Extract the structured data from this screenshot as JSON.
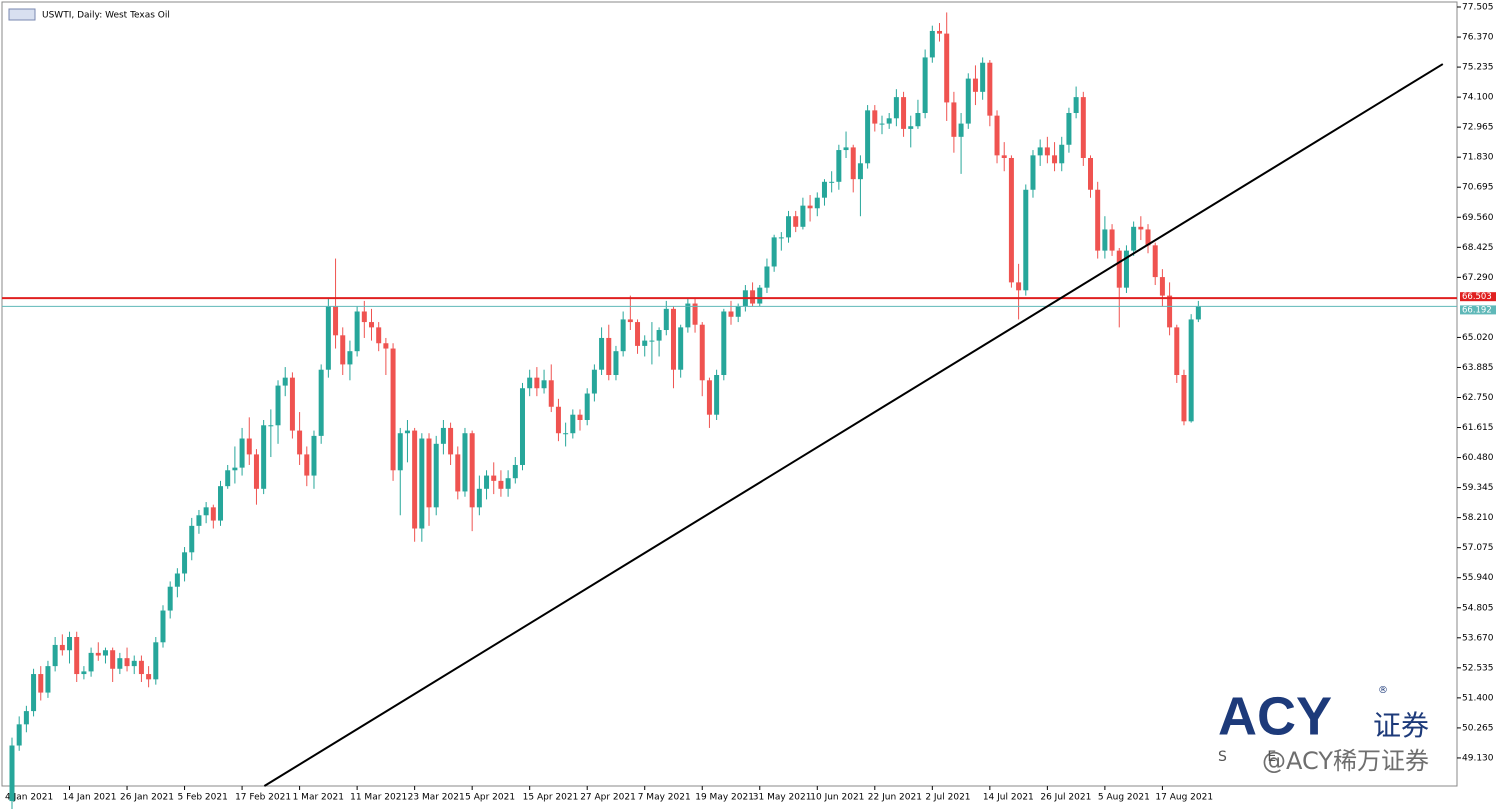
{
  "chart_data": {
    "type": "candlestick",
    "title": "USWTI, Daily:  West Texas Oil",
    "up_color": "#26a69a",
    "down_color": "#ef5350",
    "ylim": [
      48.07,
      77.77
    ],
    "yticks": [
      77.505,
      {
        "value": 76.37,
        "label": "76.370"
      },
      75.235,
      {
        "value": 74.1,
        "label": "74.100"
      },
      72.965,
      {
        "value": 71.83,
        "label": "71.830"
      },
      70.695,
      {
        "value": 69.56,
        "label": "69.560"
      },
      68.425,
      {
        "value": 67.29,
        "label": "67.290"
      },
      {
        "value": 65.02,
        "label": "65.020"
      },
      63.885,
      {
        "value": 62.75,
        "label": "62.750"
      },
      61.615,
      {
        "value": 60.48,
        "label": "60.480"
      },
      59.345,
      {
        "value": 58.21,
        "label": "58.210"
      },
      57.075,
      {
        "value": 55.94,
        "label": "55.940"
      },
      54.805,
      {
        "value": 53.67,
        "label": "53.670"
      },
      52.535,
      {
        "value": 51.4,
        "label": "51.400"
      },
      50.265,
      {
        "value": 49.13,
        "label": "49.130"
      }
    ],
    "categories": [
      "4 Jan 2021",
      null,
      null,
      null,
      null,
      null,
      null,
      null,
      "14 Jan 2021",
      null,
      null,
      null,
      null,
      null,
      null,
      null,
      "26 Jan 2021",
      null,
      null,
      null,
      null,
      null,
      null,
      null,
      "5 Feb 2021",
      null,
      null,
      null,
      null,
      null,
      null,
      null,
      "17 Feb 2021",
      null,
      null,
      null,
      null,
      null,
      null,
      null,
      "1 Mar 2021",
      null,
      null,
      null,
      null,
      null,
      null,
      null,
      "11 Mar 2021",
      null,
      null,
      null,
      null,
      null,
      null,
      null,
      "23 Mar 2021",
      null,
      null,
      null,
      null,
      null,
      null,
      null,
      "5 Apr 2021",
      null,
      null,
      null,
      null,
      null,
      null,
      null,
      "15 Apr 2021",
      null,
      null,
      null,
      null,
      null,
      null,
      null,
      "27 Apr 2021",
      null,
      null,
      null,
      null,
      null,
      null,
      null,
      "7 May 2021",
      null,
      null,
      null,
      null,
      null,
      null,
      null,
      "19 May 2021",
      null,
      null,
      null,
      null,
      null,
      null,
      null,
      "31 May 2021",
      null,
      null,
      null,
      null,
      null,
      null,
      null,
      "10 Jun 2021",
      null,
      null,
      null,
      null,
      null,
      null,
      null,
      "22 Jun 2021",
      null,
      null,
      null,
      null,
      null,
      null,
      null,
      "2 Jul 2021",
      null,
      null,
      null,
      null,
      null,
      null,
      null,
      "14 Jul 2021",
      null,
      null,
      null,
      null,
      null,
      null,
      null,
      "26 Jul 2021",
      null,
      null,
      null,
      null,
      null,
      null,
      null,
      "5 Aug 2021",
      null,
      null,
      null,
      null,
      null,
      null,
      null,
      "17 Aug 2021",
      null,
      null,
      null,
      null,
      null
    ],
    "ohlc": [
      [
        47.5,
        49.9,
        47.2,
        49.6
      ],
      [
        49.6,
        50.7,
        49.4,
        50.4
      ],
      [
        50.4,
        51.1,
        50.1,
        50.9
      ],
      [
        50.9,
        52.5,
        50.7,
        52.3
      ],
      [
        52.3,
        52.6,
        51.3,
        51.6
      ],
      [
        51.6,
        52.8,
        51.4,
        52.6
      ],
      [
        52.6,
        53.7,
        52.4,
        53.4
      ],
      [
        53.4,
        53.8,
        53.0,
        53.2
      ],
      [
        53.2,
        53.9,
        52.7,
        53.7
      ],
      [
        53.7,
        53.9,
        52.0,
        52.3
      ],
      [
        52.3,
        52.6,
        52.1,
        52.4
      ],
      [
        52.4,
        53.3,
        52.2,
        53.1
      ],
      [
        53.1,
        53.5,
        52.8,
        53.0
      ],
      [
        53.0,
        53.3,
        52.7,
        53.2
      ],
      [
        53.2,
        53.3,
        52.0,
        52.5
      ],
      [
        52.5,
        53.1,
        52.3,
        52.9
      ],
      [
        52.9,
        53.3,
        52.4,
        52.6
      ],
      [
        52.6,
        53.0,
        52.3,
        52.8
      ],
      [
        52.8,
        53.0,
        52.0,
        52.3
      ],
      [
        52.3,
        52.6,
        51.8,
        52.1
      ],
      [
        52.1,
        53.7,
        51.9,
        53.5
      ],
      [
        53.5,
        54.9,
        53.3,
        54.7
      ],
      [
        54.7,
        55.8,
        54.4,
        55.6
      ],
      [
        55.6,
        56.3,
        55.2,
        56.1
      ],
      [
        56.1,
        57.1,
        55.8,
        56.9
      ],
      [
        56.9,
        58.2,
        56.6,
        57.9
      ],
      [
        57.9,
        58.5,
        57.6,
        58.3
      ],
      [
        58.3,
        58.8,
        58.0,
        58.6
      ],
      [
        58.6,
        58.7,
        57.8,
        58.1
      ],
      [
        58.1,
        59.6,
        57.9,
        59.4
      ],
      [
        59.4,
        60.2,
        59.3,
        60.0
      ],
      [
        60.0,
        60.9,
        59.5,
        60.1
      ],
      [
        60.1,
        61.6,
        59.8,
        61.2
      ],
      [
        61.2,
        62.0,
        60.2,
        60.6
      ],
      [
        60.6,
        60.8,
        58.7,
        59.3
      ],
      [
        59.3,
        61.9,
        59.1,
        61.7
      ],
      [
        61.7,
        62.3,
        60.5,
        61.7
      ],
      [
        61.7,
        63.4,
        61.0,
        63.2
      ],
      [
        63.2,
        63.9,
        62.8,
        63.5
      ],
      [
        63.5,
        63.7,
        61.2,
        61.5
      ],
      [
        61.5,
        62.2,
        60.2,
        60.6
      ],
      [
        60.6,
        60.9,
        59.4,
        59.8
      ],
      [
        59.8,
        61.5,
        59.3,
        61.3
      ],
      [
        61.3,
        64.0,
        61.0,
        63.8
      ],
      [
        63.8,
        66.5,
        63.5,
        66.2
      ],
      [
        66.2,
        68.0,
        64.6,
        65.1
      ],
      [
        65.1,
        65.4,
        63.6,
        64.0
      ],
      [
        64.0,
        64.9,
        63.4,
        64.5
      ],
      [
        64.5,
        66.2,
        64.3,
        66.0
      ],
      [
        66.0,
        66.4,
        65.0,
        65.6
      ],
      [
        65.6,
        66.1,
        64.9,
        65.4
      ],
      [
        65.4,
        65.6,
        64.5,
        64.8
      ],
      [
        64.8,
        65.0,
        63.6,
        64.6
      ],
      [
        64.6,
        64.8,
        59.6,
        60.0
      ],
      [
        60.0,
        61.6,
        58.3,
        61.4
      ],
      [
        61.4,
        61.9,
        60.3,
        61.5
      ],
      [
        61.5,
        61.6,
        57.3,
        57.8
      ],
      [
        57.8,
        61.4,
        57.3,
        61.2
      ],
      [
        61.2,
        61.4,
        57.9,
        58.6
      ],
      [
        58.6,
        61.3,
        58.3,
        61.0
      ],
      [
        61.0,
        61.9,
        60.6,
        61.6
      ],
      [
        61.6,
        61.8,
        60.2,
        60.6
      ],
      [
        60.6,
        60.9,
        58.9,
        59.2
      ],
      [
        59.2,
        61.6,
        59.0,
        61.4
      ],
      [
        61.4,
        61.5,
        57.7,
        58.6
      ],
      [
        58.6,
        59.8,
        58.3,
        59.3
      ],
      [
        59.3,
        60.0,
        58.9,
        59.8
      ],
      [
        59.8,
        60.3,
        59.1,
        59.6
      ],
      [
        59.6,
        60.0,
        59.0,
        59.3
      ],
      [
        59.3,
        60.0,
        59.0,
        59.7
      ],
      [
        59.7,
        60.5,
        59.5,
        60.2
      ],
      [
        60.2,
        63.3,
        60.0,
        63.1
      ],
      [
        63.1,
        63.8,
        62.8,
        63.5
      ],
      [
        63.5,
        63.9,
        62.8,
        63.1
      ],
      [
        63.1,
        63.8,
        62.9,
        63.4
      ],
      [
        63.4,
        64.0,
        62.2,
        62.4
      ],
      [
        62.4,
        62.7,
        61.1,
        61.4
      ],
      [
        61.4,
        61.8,
        60.9,
        61.4
      ],
      [
        61.4,
        62.3,
        61.2,
        62.1
      ],
      [
        62.1,
        62.3,
        61.5,
        61.9
      ],
      [
        61.9,
        63.1,
        61.7,
        62.9
      ],
      [
        62.9,
        64.0,
        62.6,
        63.8
      ],
      [
        63.8,
        65.4,
        63.6,
        65.0
      ],
      [
        65.0,
        65.5,
        63.4,
        63.6
      ],
      [
        63.6,
        64.7,
        63.4,
        64.5
      ],
      [
        64.5,
        66.0,
        64.3,
        65.7
      ],
      [
        65.7,
        66.6,
        65.3,
        65.6
      ],
      [
        65.6,
        65.7,
        64.4,
        64.7
      ],
      [
        64.7,
        65.1,
        64.3,
        64.9
      ],
      [
        64.9,
        65.6,
        64.0,
        64.9
      ],
      [
        64.9,
        65.4,
        64.3,
        65.3
      ],
      [
        65.3,
        66.4,
        65.1,
        66.1
      ],
      [
        66.1,
        66.2,
        63.1,
        63.8
      ],
      [
        63.8,
        65.5,
        63.5,
        65.4
      ],
      [
        65.4,
        66.5,
        65.2,
        66.3
      ],
      [
        66.3,
        66.5,
        65.2,
        65.5
      ],
      [
        65.5,
        65.6,
        62.8,
        63.4
      ],
      [
        63.4,
        63.5,
        61.6,
        62.1
      ],
      [
        62.1,
        63.8,
        61.9,
        63.6
      ],
      [
        63.6,
        66.1,
        63.4,
        66.0
      ],
      [
        66.0,
        66.4,
        65.5,
        65.8
      ],
      [
        65.8,
        66.3,
        65.6,
        66.2
      ],
      [
        66.2,
        67.0,
        66.0,
        66.8
      ],
      [
        66.8,
        67.1,
        66.2,
        66.3
      ],
      [
        66.3,
        67.0,
        66.2,
        66.9
      ],
      [
        66.9,
        68.0,
        66.7,
        67.7
      ],
      [
        67.7,
        68.9,
        67.5,
        68.8
      ],
      [
        68.8,
        69.0,
        68.3,
        68.8
      ],
      [
        68.8,
        69.8,
        68.6,
        69.6
      ],
      [
        69.6,
        69.8,
        69.0,
        69.2
      ],
      [
        69.2,
        70.3,
        69.1,
        70.0
      ],
      [
        70.0,
        70.4,
        69.4,
        69.9
      ],
      [
        69.9,
        70.5,
        69.6,
        70.3
      ],
      [
        70.3,
        71.0,
        70.0,
        70.9
      ],
      [
        70.9,
        71.3,
        70.5,
        70.9
      ],
      [
        70.9,
        72.3,
        70.6,
        72.1
      ],
      [
        72.1,
        72.8,
        71.8,
        72.2
      ],
      [
        72.2,
        72.3,
        70.5,
        71.0
      ],
      [
        71.0,
        71.9,
        69.6,
        71.6
      ],
      [
        71.6,
        73.8,
        71.4,
        73.6
      ],
      [
        73.6,
        73.8,
        72.8,
        73.1
      ],
      [
        73.1,
        73.4,
        72.7,
        73.1
      ],
      [
        73.1,
        73.5,
        72.9,
        73.3
      ],
      [
        73.3,
        74.4,
        73.0,
        74.1
      ],
      [
        74.1,
        74.3,
        72.6,
        72.9
      ],
      [
        72.9,
        73.4,
        72.2,
        73.0
      ],
      [
        73.0,
        74.0,
        72.9,
        73.5
      ],
      [
        73.5,
        75.9,
        73.3,
        75.6
      ],
      [
        75.6,
        76.8,
        75.4,
        76.6
      ],
      [
        76.6,
        76.9,
        76.2,
        76.5
      ],
      [
        76.5,
        77.3,
        73.2,
        73.9
      ],
      [
        73.9,
        74.3,
        72.0,
        72.6
      ],
      [
        72.6,
        73.5,
        71.2,
        73.1
      ],
      [
        73.1,
        75.0,
        72.9,
        74.8
      ],
      [
        74.8,
        75.3,
        73.8,
        74.3
      ],
      [
        74.3,
        75.6,
        74.0,
        75.4
      ],
      [
        75.4,
        75.5,
        73.0,
        73.4
      ],
      [
        73.4,
        73.6,
        71.6,
        71.9
      ],
      [
        71.9,
        72.4,
        71.3,
        71.8
      ],
      [
        71.8,
        71.9,
        66.9,
        67.1
      ],
      [
        67.1,
        67.8,
        65.7,
        66.8
      ],
      [
        66.8,
        70.8,
        66.6,
        70.6
      ],
      [
        70.6,
        72.1,
        70.3,
        71.9
      ],
      [
        71.9,
        72.5,
        71.5,
        72.2
      ],
      [
        72.2,
        72.6,
        71.6,
        71.9
      ],
      [
        71.9,
        72.4,
        71.3,
        71.6
      ],
      [
        71.6,
        72.6,
        71.3,
        72.3
      ],
      [
        72.3,
        73.7,
        72.0,
        73.5
      ],
      [
        73.5,
        74.5,
        73.3,
        74.1
      ],
      [
        74.1,
        74.3,
        71.5,
        71.8
      ],
      [
        71.8,
        71.9,
        70.3,
        70.6
      ],
      [
        70.6,
        70.9,
        68.0,
        68.3
      ],
      [
        68.3,
        69.6,
        68.0,
        69.1
      ],
      [
        69.1,
        69.3,
        68.1,
        68.3
      ],
      [
        68.3,
        68.4,
        65.4,
        66.9
      ],
      [
        66.9,
        68.5,
        66.7,
        68.3
      ],
      [
        68.3,
        69.4,
        68.1,
        69.2
      ],
      [
        69.2,
        69.6,
        68.7,
        69.1
      ],
      [
        69.1,
        69.3,
        68.2,
        68.5
      ],
      [
        68.5,
        68.6,
        67.0,
        67.3
      ],
      [
        67.3,
        67.6,
        66.2,
        66.6
      ],
      [
        66.6,
        67.1,
        65.1,
        65.4
      ],
      [
        65.4,
        65.5,
        63.3,
        63.6
      ],
      [
        63.6,
        63.8,
        61.7,
        61.85
      ],
      [
        61.85,
        65.9,
        61.8,
        65.7
      ],
      [
        65.7,
        66.4,
        65.6,
        66.19
      ]
    ],
    "price_lines": [
      {
        "value": 66.503,
        "color": "#e02020"
      },
      {
        "value": 66.192,
        "color": "#5fb8b8"
      }
    ],
    "trendline": {
      "index": [
        35.1,
        199
      ],
      "price": [
        48.07,
        75.35
      ],
      "color": "#000000"
    }
  },
  "logo": {
    "mark": "ACY",
    "reg": "®",
    "cn": "证券",
    "tagline": "S E"
  },
  "watermark": "@ACY稀万证券"
}
